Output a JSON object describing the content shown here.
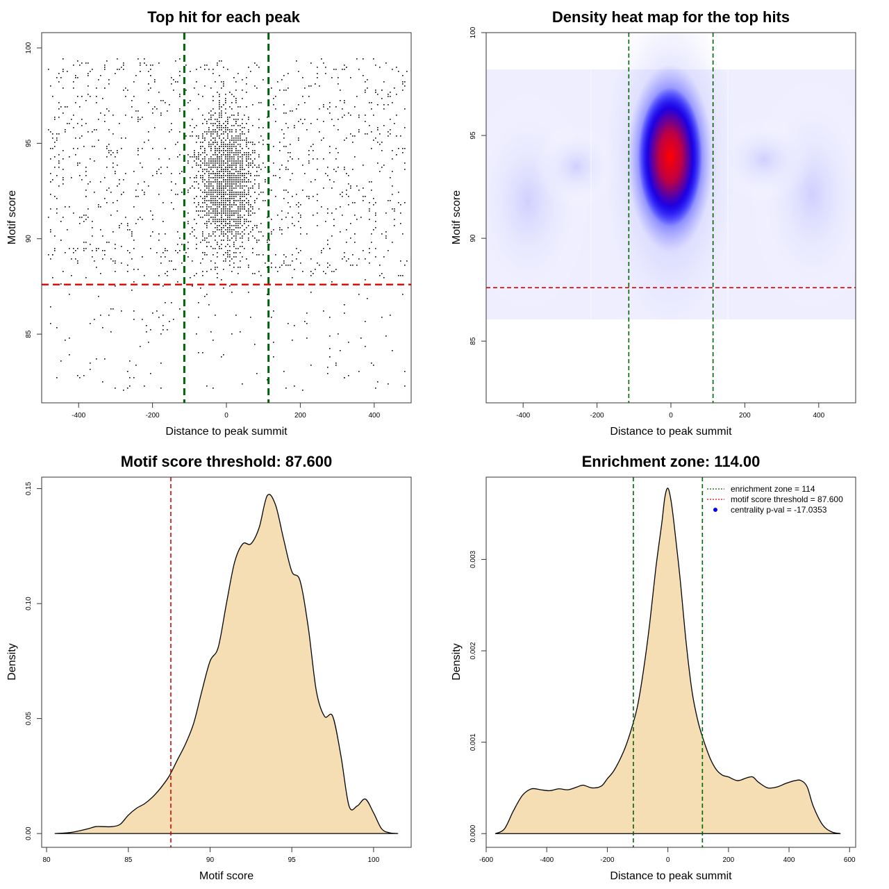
{
  "chart_data": [
    {
      "type": "scatter",
      "title": "Top hit for each peak",
      "xlabel": "Distance to peak summit",
      "ylabel": "Motif score",
      "xlim": [
        -500,
        500
      ],
      "ylim": [
        81.4,
        100.8
      ],
      "xticks": [
        -400,
        -200,
        0,
        200,
        400
      ],
      "yticks": [
        85,
        90,
        95,
        100
      ],
      "vlines": [
        -114,
        114
      ],
      "vline_color": "#006400",
      "hline": 87.6,
      "hline_color": "#e00000",
      "point_color": "#000000",
      "n_points_approx": 3000,
      "distribution": "points concentrated near distance 0 between scores 89 and 97; sparse uniform background across -480..480 above 88"
    },
    {
      "type": "heatmap",
      "title": "Density heat map for the top hits",
      "xlabel": "Distance to peak summit",
      "ylabel": "Motif score",
      "xlim": [
        -500,
        500
      ],
      "ylim": [
        82,
        100
      ],
      "xticks": [
        -400,
        -200,
        0,
        200,
        400
      ],
      "yticks": [
        85,
        90,
        95,
        100
      ],
      "colors": [
        "#ffffff",
        "#0000ff",
        "#ff0000"
      ],
      "peak": {
        "x": 0,
        "y": 94
      },
      "vlines": [
        -114,
        114
      ],
      "vline_color": "#006400",
      "hline": 87.6,
      "hline_color": "#e00000"
    },
    {
      "type": "area",
      "title": "Motif score threshold: 87.600",
      "xlabel": "Motif score",
      "ylabel": "Density",
      "xlim": [
        79.7,
        102.3
      ],
      "ylim": [
        -0.006,
        0.155
      ],
      "xticks": [
        80,
        85,
        90,
        95,
        100
      ],
      "ytick_labels": [
        "0.00",
        "0.05",
        "0.10",
        "0.15"
      ],
      "yticks": [
        0,
        0.05,
        0.1,
        0.15
      ],
      "fill_color": "#f5deb3",
      "x": [
        80.5,
        81.5,
        82.5,
        83.0,
        83.5,
        84.0,
        84.5,
        85.0,
        85.5,
        86.0,
        86.5,
        87.0,
        87.5,
        88.0,
        88.5,
        89.0,
        89.5,
        90.0,
        90.5,
        91.0,
        91.5,
        92.0,
        92.5,
        93.0,
        93.5,
        94.0,
        94.5,
        95.0,
        95.5,
        96.0,
        96.5,
        97.0,
        97.5,
        98.0,
        98.5,
        99.0,
        99.5,
        100.0,
        100.5,
        101.0,
        101.5
      ],
      "values": [
        0.0,
        0.0005,
        0.002,
        0.003,
        0.003,
        0.003,
        0.004,
        0.008,
        0.011,
        0.013,
        0.016,
        0.02,
        0.025,
        0.032,
        0.039,
        0.048,
        0.062,
        0.075,
        0.081,
        0.1,
        0.118,
        0.126,
        0.126,
        0.133,
        0.147,
        0.143,
        0.128,
        0.114,
        0.11,
        0.09,
        0.062,
        0.051,
        0.051,
        0.034,
        0.012,
        0.012,
        0.015,
        0.009,
        0.002,
        0.0003,
        0.0
      ],
      "vline": 87.6,
      "vline_color": "#e00000"
    },
    {
      "type": "area",
      "title": "Enrichment zone: 114.00",
      "xlabel": "Distance to peak summit",
      "ylabel": "Density",
      "xlim": [
        -600,
        620
      ],
      "ylim": [
        -0.00015,
        0.0039
      ],
      "xticks": [
        -600,
        -400,
        -200,
        0,
        200,
        400,
        600
      ],
      "ytick_labels": [
        "0.000",
        "0.001",
        "0.002",
        "0.003"
      ],
      "yticks": [
        0,
        0.001,
        0.002,
        0.003
      ],
      "fill_color": "#f5deb3",
      "x": [
        -570,
        -540,
        -510,
        -480,
        -450,
        -420,
        -390,
        -360,
        -330,
        -300,
        -280,
        -250,
        -220,
        -200,
        -180,
        -160,
        -140,
        -120,
        -100,
        -80,
        -60,
        -40,
        -20,
        -10,
        0,
        10,
        20,
        40,
        60,
        80,
        100,
        120,
        140,
        160,
        180,
        200,
        230,
        260,
        280,
        300,
        330,
        360,
        390,
        420,
        440,
        460,
        480,
        510,
        540,
        570
      ],
      "values": [
        0.0,
        5e-05,
        0.00025,
        0.00042,
        0.00049,
        0.00048,
        0.00047,
        0.00049,
        0.00048,
        0.00051,
        0.00053,
        0.0005,
        0.00052,
        0.0006,
        0.00068,
        0.0008,
        0.00095,
        0.00115,
        0.0014,
        0.0018,
        0.0023,
        0.0029,
        0.0034,
        0.00368,
        0.00378,
        0.00365,
        0.0034,
        0.0028,
        0.0021,
        0.00155,
        0.00122,
        0.001,
        0.00082,
        0.0007,
        0.00064,
        0.00062,
        0.00058,
        0.00061,
        0.00062,
        0.00056,
        0.0005,
        0.00051,
        0.00055,
        0.00058,
        0.00058,
        0.00051,
        0.0003,
        0.0001,
        2e-05,
        0.0
      ],
      "vlines": [
        -114,
        114
      ],
      "vline_color": "#006400",
      "legend_position": "top-right",
      "legend": [
        {
          "label": "enrichment zone = 114",
          "color": "#006400",
          "symbol": "dotted-line"
        },
        {
          "label": "motif score threshold = 87.600",
          "color": "#e00000",
          "symbol": "dotted-line"
        },
        {
          "label": "centrality p-val = -17.0353",
          "color": "#0000ff",
          "symbol": "dot"
        }
      ]
    }
  ]
}
